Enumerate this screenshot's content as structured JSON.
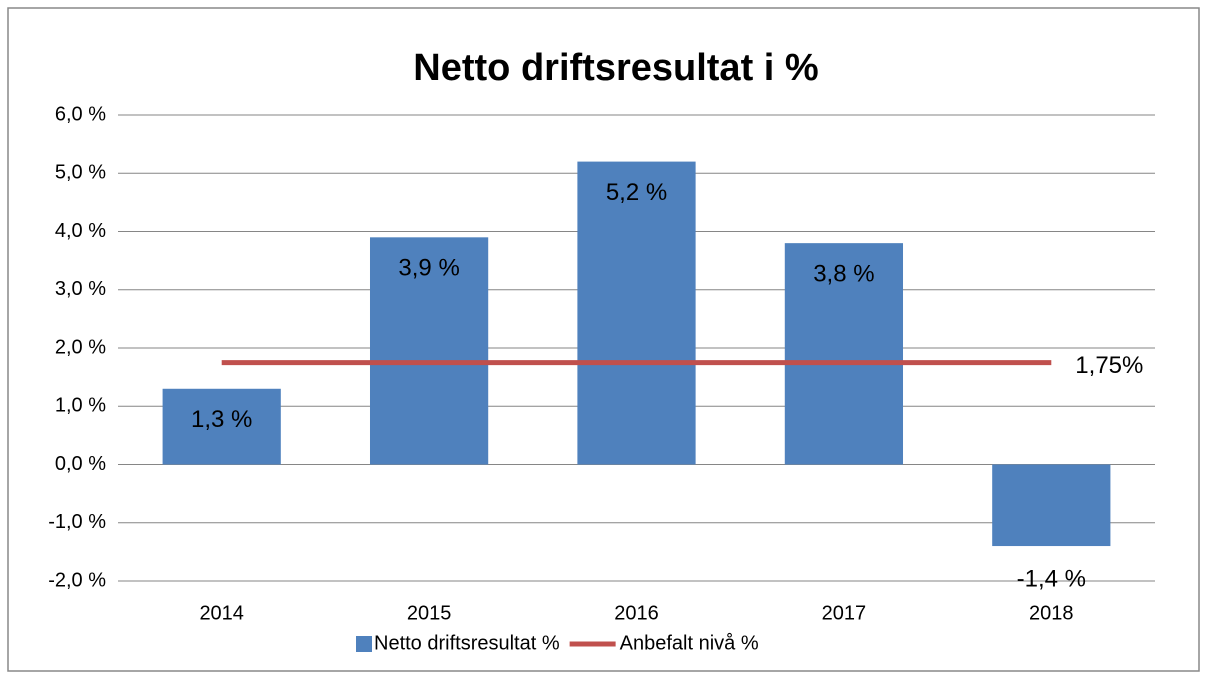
{
  "chart_data": {
    "type": "bar",
    "title": "Netto driftsresultat i %",
    "categories": [
      "2014",
      "2015",
      "2016",
      "2017",
      "2018"
    ],
    "series": [
      {
        "name": "Netto driftsresultat %",
        "type": "bar",
        "color": "#4f81bd",
        "values": [
          1.3,
          3.9,
          5.2,
          3.8,
          -1.4
        ],
        "value_labels": [
          "1,3 %",
          "3,9 %",
          "5,2 %",
          "3,8 %",
          "-1,4 %"
        ]
      },
      {
        "name": "Anbefalt nivå %",
        "type": "line",
        "color": "#c0504d",
        "values": [
          1.75,
          1.75,
          1.75,
          1.75,
          1.75
        ],
        "value_labels": [
          null,
          null,
          null,
          null,
          "1,75%"
        ]
      }
    ],
    "ylim": [
      -2,
      6
    ],
    "yticks": [
      {
        "value": -2,
        "label": "-2,0 %"
      },
      {
        "value": -1,
        "label": "-1,0 %"
      },
      {
        "value": 0,
        "label": "0,0 %"
      },
      {
        "value": 1,
        "label": "1,0 %"
      },
      {
        "value": 2,
        "label": "2,0 %"
      },
      {
        "value": 3,
        "label": "3,0 %"
      },
      {
        "value": 4,
        "label": "4,0 %"
      },
      {
        "value": 5,
        "label": "5,0 %"
      },
      {
        "value": 6,
        "label": "6,0 %"
      }
    ],
    "grid": true,
    "legend": "bottom"
  }
}
